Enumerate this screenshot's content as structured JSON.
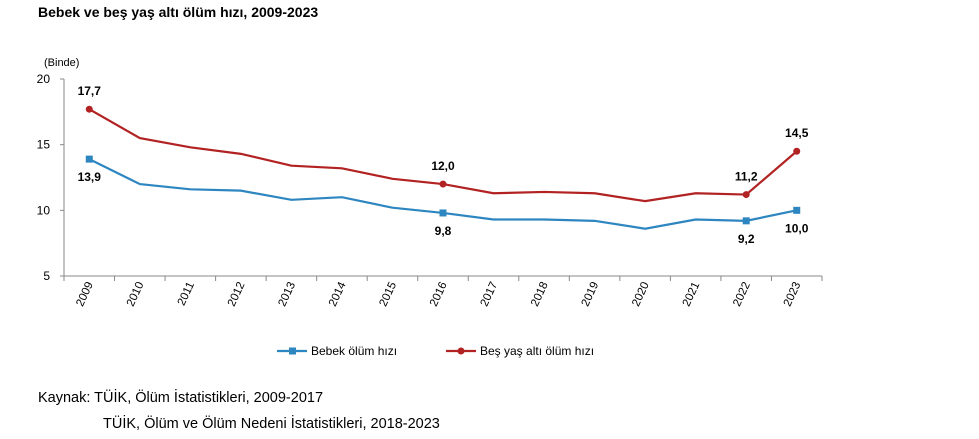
{
  "title": "Bebek ve beş yaş altı ölüm hızı, 2009-2023",
  "source": {
    "line1": "Kaynak: TÜİK, Ölüm İstatistikleri, 2009-2017",
    "line2": "TÜİK, Ölüm ve Ölüm Nedeni İstatistikleri, 2018-2023"
  },
  "chart_data": {
    "type": "line",
    "unit_label": "(Binde)",
    "x": [
      "2009",
      "2010",
      "2011",
      "2012",
      "2013",
      "2014",
      "2015",
      "2016",
      "2017",
      "2018",
      "2019",
      "2020",
      "2021",
      "2022",
      "2023"
    ],
    "ylim": [
      5,
      20
    ],
    "yticks": [
      "5",
      "10",
      "15",
      "20"
    ],
    "grid": false,
    "legend_position": "bottom",
    "series": [
      {
        "name": "Bebek ölüm hızı",
        "color": "#2e86c1",
        "marker": "square",
        "values": [
          13.9,
          12.0,
          11.6,
          11.5,
          10.8,
          11.0,
          10.2,
          9.8,
          9.3,
          9.3,
          9.2,
          8.6,
          9.3,
          9.2,
          10.0
        ],
        "labels": [
          {
            "index": 0,
            "text": "13,9"
          },
          {
            "index": 7,
            "text": "9,8"
          },
          {
            "index": 13,
            "text": "9,2"
          },
          {
            "index": 14,
            "text": "10,0"
          }
        ]
      },
      {
        "name": "Beş yaş altı ölüm hızı",
        "color": "#b22222",
        "marker": "circle",
        "values": [
          17.7,
          15.5,
          14.8,
          14.3,
          13.4,
          13.2,
          12.4,
          12.0,
          11.3,
          11.4,
          11.3,
          10.7,
          11.3,
          11.2,
          14.5
        ],
        "labels": [
          {
            "index": 0,
            "text": "17,7"
          },
          {
            "index": 7,
            "text": "12,0"
          },
          {
            "index": 13,
            "text": "11,2"
          },
          {
            "index": 14,
            "text": "14,5"
          }
        ]
      }
    ]
  }
}
